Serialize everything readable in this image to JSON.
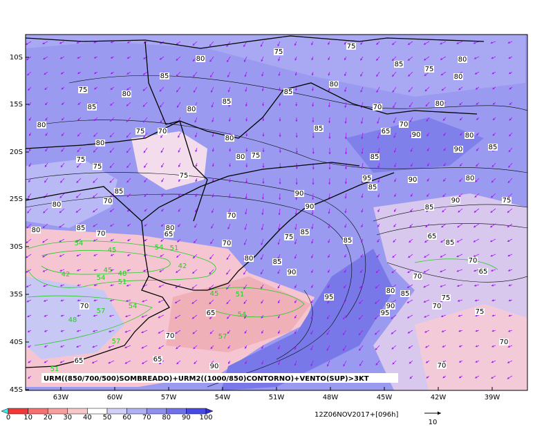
{
  "map": {
    "lat_labels": [
      "10S",
      "15S",
      "20S",
      "25S",
      "30S",
      "35S",
      "40S",
      "45S"
    ],
    "lon_labels": [
      "63W",
      "60W",
      "57W",
      "54W",
      "51W",
      "48W",
      "45W",
      "42W",
      "39W"
    ],
    "caption": "URM((850/700/500)SOMBREADO)+URM2((1000/850)CONTORNO)+VENTO(SUP)>3KT",
    "colorbar_labels": [
      0,
      10,
      20,
      30,
      40,
      50,
      60,
      70,
      80,
      90,
      100
    ],
    "run_time": "12Z06NOV2017+[096h]",
    "vector_scale": "10",
    "black_contour_labels": [
      75,
      80,
      85,
      75,
      80,
      85,
      80,
      85,
      85,
      80,
      70,
      80,
      75,
      70,
      80,
      80,
      80,
      75,
      85,
      75,
      75,
      75,
      85,
      70,
      80,
      90,
      90,
      80,
      85,
      70,
      80,
      65,
      70,
      70,
      75,
      85,
      85,
      80,
      85,
      90,
      95,
      65,
      70,
      90,
      65,
      65,
      70,
      65,
      85,
      70,
      65,
      70,
      80,
      85,
      90,
      95,
      70,
      75,
      75,
      70,
      70,
      75,
      75,
      85,
      80,
      80,
      80,
      70,
      65,
      90,
      80,
      85,
      90,
      90,
      80,
      95,
      85,
      85,
      90,
      85,
      75
    ],
    "green_contour_labels": [
      54,
      54,
      51,
      42,
      45,
      45,
      48,
      51,
      54,
      42,
      57,
      54,
      48,
      57,
      54,
      51,
      45,
      57,
      51
    ]
  }
}
